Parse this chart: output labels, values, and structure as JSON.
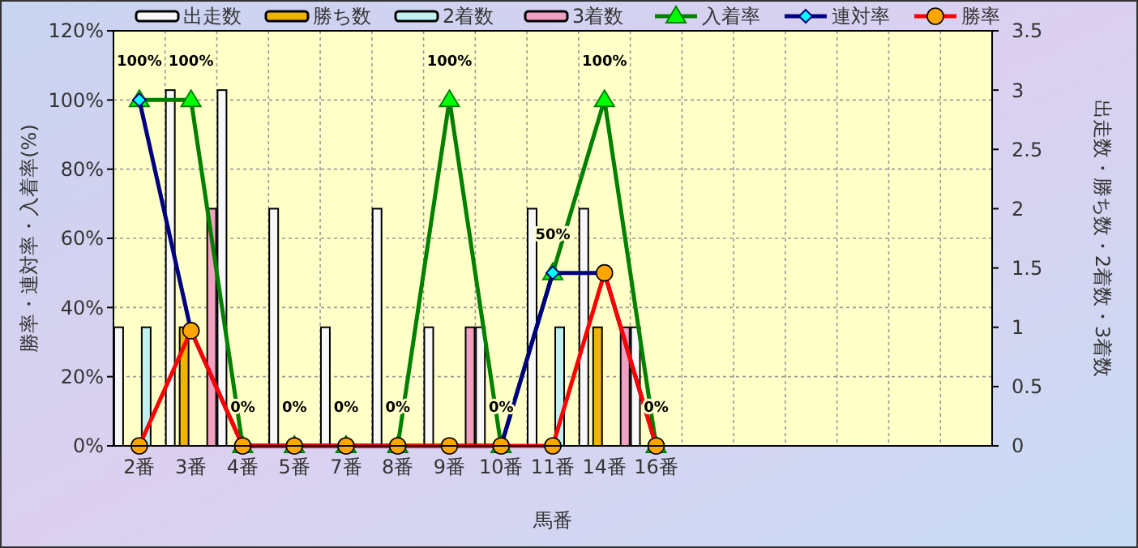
{
  "chart_data": {
    "type": "bar",
    "xlabel": "馬番",
    "ylabel": "勝率・連対率・入着率(%)",
    "y2label": "出走数・勝ち数・2着数・3着数",
    "categories": [
      "2番",
      "3番",
      "4番",
      "5番",
      "7番",
      "8番",
      "9番",
      "10番",
      "11番",
      "14番",
      "16番",
      null,
      null,
      null,
      null,
      null,
      null
    ],
    "ylim": [
      0,
      120
    ],
    "yticks": [
      {
        "value": 0,
        "label": "0%"
      },
      {
        "value": 20,
        "label": "20%"
      },
      {
        "value": 40,
        "label": "40%"
      },
      {
        "value": 60,
        "label": "60%"
      },
      {
        "value": 80,
        "label": "80%"
      },
      {
        "value": 100,
        "label": "100%"
      },
      {
        "value": 120,
        "label": "120%"
      }
    ],
    "y2lim": [
      0,
      3.5
    ],
    "y2ticks": [
      0,
      0.5,
      1,
      1.5,
      2,
      2.5,
      3,
      3.5
    ],
    "grid": true,
    "legend": "top",
    "series": [
      {
        "name": "出走数",
        "axis": "y2",
        "color": "#f8f8f8",
        "values": [
          1,
          3,
          3,
          2,
          1,
          2,
          1,
          1,
          2,
          2,
          1,
          null,
          null,
          null,
          null,
          null,
          null
        ]
      },
      {
        "name": "勝ち数",
        "axis": "y2",
        "color": "#f0b400",
        "values": [
          0,
          1,
          0,
          0,
          0,
          0,
          0,
          0,
          0,
          1,
          0,
          null,
          null,
          null,
          null,
          null,
          null
        ]
      },
      {
        "name": "2着数",
        "axis": "y2",
        "color": "#c0f0f0",
        "values": [
          1,
          0,
          0,
          0,
          0,
          0,
          0,
          0,
          1,
          0,
          0,
          null,
          null,
          null,
          null,
          null,
          null
        ]
      },
      {
        "name": "3着数",
        "axis": "y2",
        "color": "#f0a0c0",
        "values": [
          0,
          2,
          0,
          0,
          0,
          0,
          1,
          0,
          0,
          1,
          0,
          null,
          null,
          null,
          null,
          null,
          null
        ]
      },
      {
        "name": "入着率",
        "type": "line",
        "marker": "triangle",
        "color": "#008000",
        "values": [
          100,
          100,
          0,
          0,
          0,
          0,
          100,
          0,
          50,
          100,
          0,
          null,
          null,
          null,
          null,
          null,
          null
        ],
        "value_labels": [
          "100%",
          "100%",
          "0%",
          "0%",
          "0%",
          "0%",
          "100%",
          "0%",
          "50%",
          "100%",
          "0%",
          null,
          null,
          null,
          null,
          null,
          null
        ]
      },
      {
        "name": "連対率",
        "type": "line",
        "marker": "diamond",
        "color": "#000080",
        "values": [
          100,
          33.3,
          0,
          0,
          0,
          0,
          0,
          0,
          50,
          50,
          0,
          null,
          null,
          null,
          null,
          null,
          null
        ]
      },
      {
        "name": "勝率",
        "type": "line",
        "marker": "circle",
        "color": "#ff0000",
        "values": [
          0,
          33.3,
          0,
          0,
          0,
          0,
          0,
          0,
          0,
          50,
          0,
          null,
          null,
          null,
          null,
          null,
          null
        ]
      }
    ]
  }
}
